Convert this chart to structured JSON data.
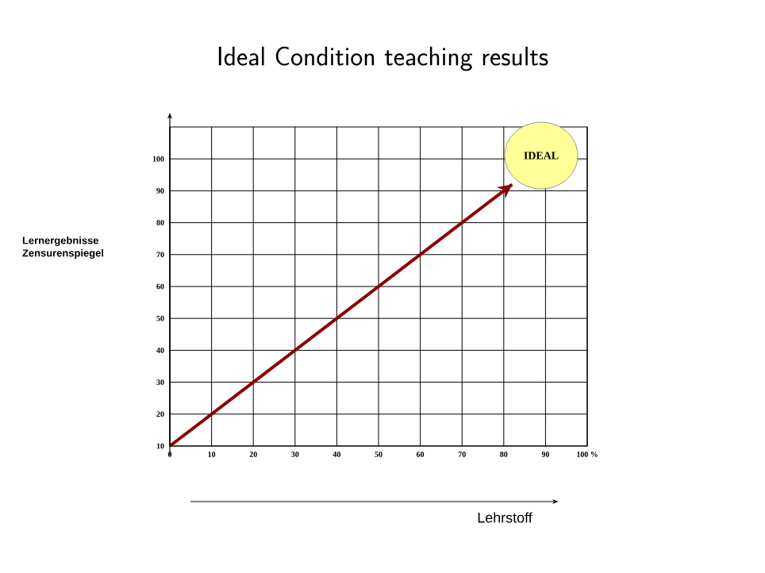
{
  "chart_data": {
    "type": "line",
    "title": "Ideal Condition teaching results",
    "xlabel": "Lehrstoff",
    "ylabel": "Lernergebnisse Zensurenspiegel",
    "x": [
      0,
      82
    ],
    "series": [
      {
        "color": "#8b0000",
        "values": [
          10,
          92
        ]
      }
    ],
    "xlim": [
      0,
      100
    ],
    "ylim": [
      10,
      110
    ],
    "xticks": [
      0,
      10,
      20,
      30,
      40,
      50,
      60,
      70,
      80,
      90,
      {
        "value": 100,
        "label": "100 %"
      }
    ],
    "yticks": [
      10,
      20,
      30,
      40,
      50,
      60,
      70,
      80,
      90,
      100
    ],
    "annotations": [
      "IDEAL"
    ],
    "grid": true,
    "marker": "none",
    "line_style": "solid"
  }
}
